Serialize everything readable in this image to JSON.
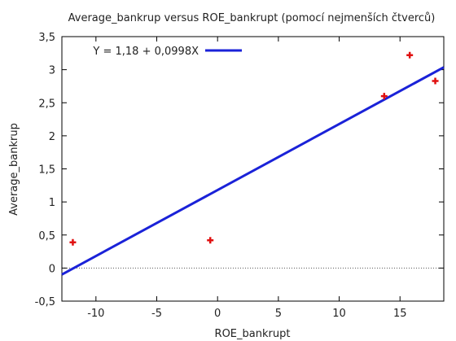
{
  "chart_data": {
    "type": "scatter",
    "title": "Average_bankrup versus ROE_bankrupt (pomocí nejmenších čtverců)",
    "xlabel": "ROE_bankrupt",
    "ylabel": "Average_bankrup",
    "xlim": [
      -12.8,
      18.6
    ],
    "ylim": [
      -0.5,
      3.5
    ],
    "x_ticks": [
      -10,
      -5,
      0,
      5,
      10,
      15
    ],
    "x_tick_labels": [
      "-10",
      "-5",
      "0",
      "5",
      "10",
      "15"
    ],
    "y_ticks": [
      -0.5,
      0,
      0.5,
      1,
      1.5,
      2,
      2.5,
      3,
      3.5
    ],
    "y_tick_labels": [
      "-0,5",
      "0",
      "0,5",
      "1",
      "1,5",
      "2",
      "2,5",
      "3",
      "3,5"
    ],
    "zero_line": true,
    "grid": false,
    "legend_position": "top-left",
    "points": [
      {
        "x": -11.9,
        "y": 0.39
      },
      {
        "x": -0.6,
        "y": 0.42
      },
      {
        "x": 13.7,
        "y": 2.6
      },
      {
        "x": 15.8,
        "y": 3.22
      },
      {
        "x": 17.9,
        "y": 2.83
      }
    ],
    "point_color": "#e01010",
    "fit": {
      "label": "Y = 1,18 + 0,0998X",
      "intercept": 1.18,
      "slope": 0.0998,
      "color": "#1a22d8"
    }
  }
}
